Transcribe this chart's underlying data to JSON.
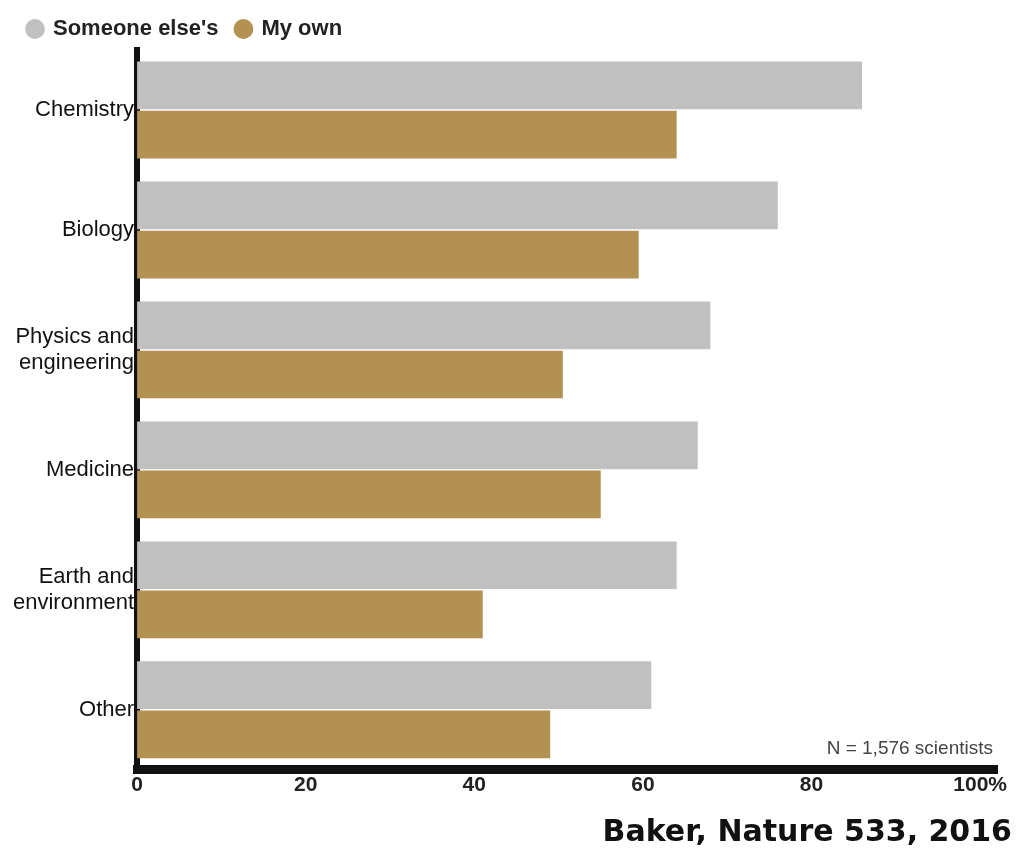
{
  "chart_data": {
    "type": "bar",
    "orientation": "horizontal",
    "categories": [
      "Chemistry",
      "Biology",
      "Physics and engineering",
      "Medicine",
      "Earth and environment",
      "Other"
    ],
    "series": [
      {
        "name": "Someone else's",
        "color": "#c0c0c0",
        "values": [
          86,
          76,
          68,
          66.5,
          64,
          61
        ]
      },
      {
        "name": "My own",
        "color": "#b39150",
        "values": [
          64,
          59.5,
          50.5,
          55,
          41,
          49
        ]
      }
    ],
    "xlim": [
      0,
      102
    ],
    "xticks": [
      0,
      20,
      40,
      60,
      80,
      {
        "value": 100,
        "label": "100%"
      }
    ],
    "grid": false,
    "legend": "top left",
    "annotations": [
      "N = 1,576 scientists",
      "Baker, Nature 533, 2016"
    ]
  }
}
